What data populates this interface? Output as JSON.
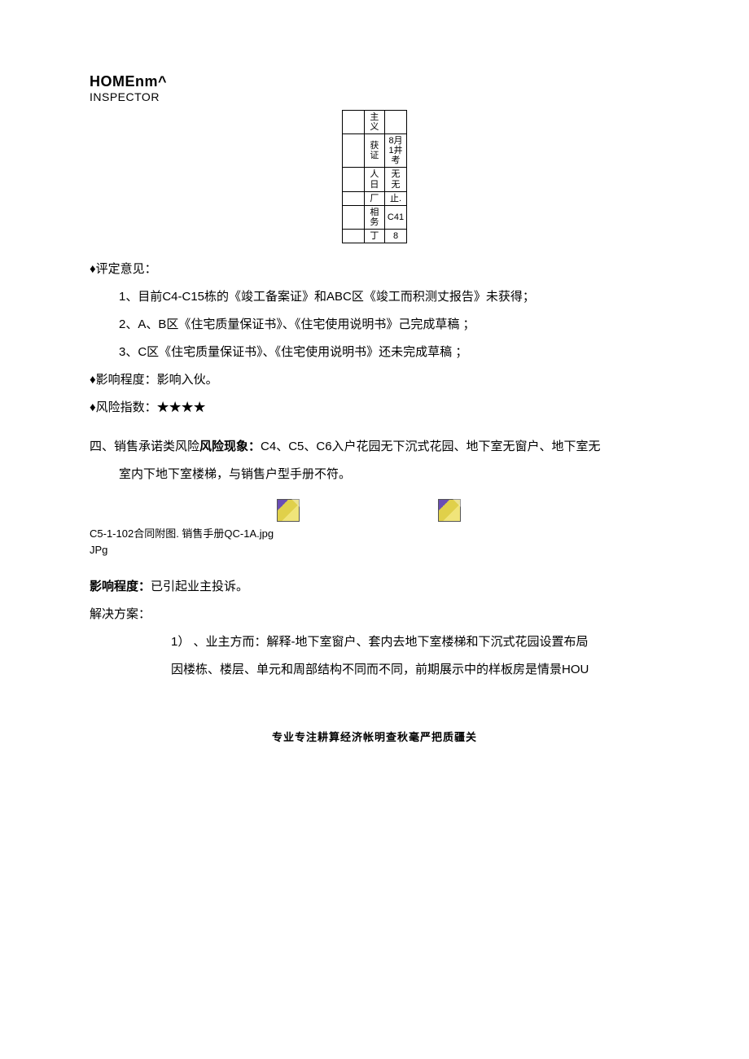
{
  "header": {
    "title": "HOMEnm^",
    "subtitle": "INSPECTOR"
  },
  "mini_table": {
    "rows": [
      {
        "c1": "",
        "c2": "主义",
        "c3": ""
      },
      {
        "c1": "",
        "c2": "获证",
        "c3": "8月1井考"
      },
      {
        "c1": "",
        "c2": "人日",
        "c3": "无无"
      },
      {
        "c1": "",
        "c2": "厂",
        "c3": "止."
      },
      {
        "c1": "",
        "c2": "相务",
        "c3": "C41"
      },
      {
        "c1": "",
        "c2": "丁",
        "c3": "8"
      }
    ]
  },
  "opinion": {
    "heading": "♦评定意见：",
    "items": [
      "1、目前C4-C15栋的《竣工备案证》和ABC区《竣工而积测丈报告》未获得；",
      "2、A、B区《住宅质量保证书》、《住宅使用说明书》己完成草稿 ；",
      "3、C区《住宅质量保证书》、《住宅使用说明书》还未完成草稿 ；"
    ]
  },
  "impact1": "♦影响程度：影响入伙。",
  "risk_index": {
    "label": "♦风险指数：",
    "stars": "★★★★"
  },
  "section4": {
    "prefix": "四、销售承诺类风险",
    "bold": "风险现象：",
    "rest1": "C4、C5、C6入户花园无下沉式花园、地下室无窗户、地下室无",
    "rest2": "室内下地下室楼梯，与销售户型手册不符。"
  },
  "files": {
    "caption1": "C5-1-102合同附图. 销售手册QC-1A.jpg",
    "caption2": "JPg"
  },
  "impact2": {
    "label": "影响程度：",
    "text": "已引起业主投诉。"
  },
  "solution": {
    "heading": "解决方案：",
    "line1": "1） 、业主方而：解释-地下室窗户、套内去地下室楼梯和下沉式花园设置布局",
    "line2": "因楼栋、楼层、单元和周部结构不同而不同，前期展示中的样板房是情景HOU"
  },
  "footer": "专业专注耕算经济帐明查秋毫严把质疆关"
}
